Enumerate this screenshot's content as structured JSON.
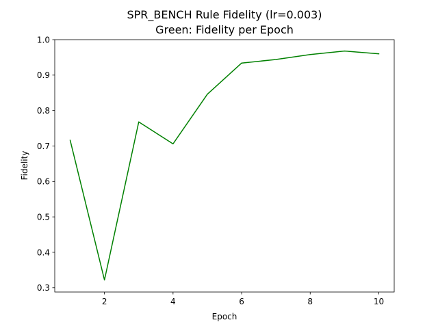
{
  "chart_data": {
    "type": "line",
    "title": "SPR_BENCH Rule Fidelity (lr=0.003)",
    "subtitle": "Green: Fidelity per Epoch",
    "xlabel": "Epoch",
    "ylabel": "Fidelity",
    "xlim": [
      0.55,
      10.45
    ],
    "ylim": [
      0.288,
      1.0
    ],
    "x_ticks": [
      2,
      4,
      6,
      8,
      10
    ],
    "x_tick_labels": [
      "2",
      "4",
      "6",
      "8",
      "10"
    ],
    "y_ticks": [
      0.3,
      0.4,
      0.5,
      0.6,
      0.7,
      0.8,
      0.9,
      1.0
    ],
    "y_tick_labels": [
      "0.3",
      "0.4",
      "0.5",
      "0.6",
      "0.7",
      "0.8",
      "0.9",
      "1.0"
    ],
    "grid": false,
    "series": [
      {
        "color": "#008000",
        "x": [
          1,
          2,
          3,
          4,
          5,
          6,
          7,
          8,
          9,
          10
        ],
        "y": [
          0.716,
          0.322,
          0.768,
          0.706,
          0.846,
          0.934,
          0.944,
          0.958,
          0.968,
          0.96
        ]
      }
    ]
  }
}
